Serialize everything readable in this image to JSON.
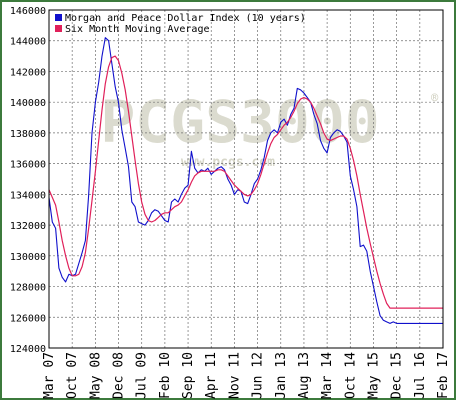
{
  "chart_data": {
    "type": "line",
    "title": "",
    "xlabel": "",
    "ylabel": "",
    "ylim": [
      124000,
      146000
    ],
    "y_ticks": [
      124000,
      126000,
      128000,
      130000,
      132000,
      134000,
      136000,
      138000,
      140000,
      142000,
      144000,
      146000
    ],
    "x_tick_labels": [
      "Mar 07",
      "Oct 07",
      "May 08",
      "Dec 08",
      "Jul 09",
      "Feb 10",
      "Sep 10",
      "Apr 11",
      "Nov 11",
      "Jun 12",
      "Jan 13",
      "Aug 13",
      "Mar 14",
      "Oct 14",
      "May 15",
      "Dec 15",
      "Jul 16",
      "Feb 17"
    ],
    "x_tick_positions": [
      0,
      7,
      14,
      21,
      28,
      35,
      42,
      49,
      56,
      63,
      70,
      77,
      84,
      91,
      98,
      105,
      112,
      119
    ],
    "x_range": [
      0,
      119
    ],
    "grid": true,
    "legend_position": "top-left",
    "watermark": "PCGS3000",
    "watermark_url": "www.pcgs.com",
    "series": [
      {
        "name": "Morgan and Peace Dollar Index (10 years)",
        "color": "#1010cc",
        "x": [
          0,
          1,
          2,
          3,
          4,
          5,
          6,
          7,
          8,
          9,
          10,
          11,
          12,
          13,
          14,
          15,
          16,
          17,
          18,
          19,
          20,
          21,
          22,
          23,
          24,
          25,
          26,
          27,
          28,
          29,
          30,
          31,
          32,
          33,
          34,
          35,
          36,
          37,
          38,
          39,
          40,
          41,
          42,
          43,
          44,
          45,
          46,
          47,
          48,
          49,
          50,
          51,
          52,
          53,
          54,
          55,
          56,
          57,
          58,
          59,
          60,
          61,
          62,
          63,
          64,
          65,
          66,
          67,
          68,
          69,
          70,
          71,
          72,
          73,
          74,
          75,
          76,
          77,
          78,
          79,
          80,
          81,
          82,
          83,
          84,
          85,
          86,
          87,
          88,
          89,
          90,
          91,
          92,
          93,
          94,
          95,
          96,
          97,
          98,
          99,
          100,
          101,
          102,
          103,
          104,
          105,
          106,
          107,
          108,
          109,
          110,
          111,
          112,
          113,
          114,
          115,
          116,
          117,
          118,
          119
        ],
        "values": [
          133800,
          132200,
          131800,
          129200,
          128600,
          128300,
          128800,
          128700,
          128800,
          129500,
          130200,
          131000,
          134000,
          138000,
          140000,
          141300,
          143000,
          144200,
          144000,
          142500,
          141000,
          140000,
          138200,
          137000,
          135800,
          133500,
          133200,
          132200,
          132100,
          132000,
          132300,
          132800,
          133000,
          132900,
          132600,
          132300,
          132200,
          133500,
          133700,
          133500,
          134000,
          134400,
          134600,
          136800,
          135700,
          135400,
          135600,
          135500,
          135700,
          135300,
          135500,
          135700,
          135800,
          135600,
          135000,
          134600,
          134000,
          134300,
          134200,
          133500,
          133400,
          134000,
          134700,
          135000,
          135600,
          136400,
          137500,
          138000,
          138200,
          138000,
          138700,
          138900,
          138500,
          139200,
          139600,
          140900,
          140800,
          140600,
          140300,
          140000,
          139200,
          138600,
          137500,
          137000,
          136700,
          137700,
          138000,
          138200,
          138100,
          137800,
          137400,
          135200,
          134300,
          133200,
          130600,
          130700,
          130300,
          129000,
          128000,
          127000,
          126100,
          125800,
          125700,
          125600,
          125700,
          125600,
          125600,
          125600,
          125600,
          125600,
          125600,
          125600,
          125600,
          125600,
          125600,
          125600,
          125600,
          125600,
          125600,
          125600
        ]
      },
      {
        "name": "Six Month Moving Average",
        "color": "#e0205a",
        "x": [
          0,
          1,
          2,
          3,
          4,
          5,
          6,
          7,
          8,
          9,
          10,
          11,
          12,
          13,
          14,
          15,
          16,
          17,
          18,
          19,
          20,
          21,
          22,
          23,
          24,
          25,
          26,
          27,
          28,
          29,
          30,
          31,
          32,
          33,
          34,
          35,
          36,
          37,
          38,
          39,
          40,
          41,
          42,
          43,
          44,
          45,
          46,
          47,
          48,
          49,
          50,
          51,
          52,
          53,
          54,
          55,
          56,
          57,
          58,
          59,
          60,
          61,
          62,
          63,
          64,
          65,
          66,
          67,
          68,
          69,
          70,
          71,
          72,
          73,
          74,
          75,
          76,
          77,
          78,
          79,
          80,
          81,
          82,
          83,
          84,
          85,
          86,
          87,
          88,
          89,
          90,
          91,
          92,
          93,
          94,
          95,
          96,
          97,
          98,
          99,
          100,
          101,
          102,
          103,
          104,
          105,
          106,
          107,
          108,
          109,
          110,
          111,
          112,
          113,
          114,
          115,
          116,
          117,
          118,
          119
        ],
        "values": [
          134300,
          133800,
          133300,
          132200,
          131000,
          130000,
          129200,
          128700,
          128700,
          128800,
          129300,
          130200,
          131800,
          133600,
          135500,
          137500,
          139500,
          141200,
          142300,
          142900,
          143000,
          142700,
          141900,
          140800,
          139400,
          137800,
          136200,
          134700,
          133500,
          132700,
          132300,
          132200,
          132300,
          132500,
          132700,
          132800,
          132800,
          133000,
          133200,
          133300,
          133500,
          133900,
          134300,
          134800,
          135200,
          135400,
          135500,
          135500,
          135500,
          135500,
          135500,
          135600,
          135600,
          135500,
          135200,
          134900,
          134600,
          134400,
          134200,
          134000,
          133900,
          134000,
          134300,
          134700,
          135300,
          136000,
          136700,
          137300,
          137700,
          137900,
          138200,
          138500,
          138700,
          139000,
          139400,
          139900,
          140200,
          140300,
          140200,
          140000,
          139600,
          139100,
          138600,
          138000,
          137600,
          137500,
          137600,
          137700,
          137800,
          137800,
          137600,
          137000,
          136200,
          135200,
          134000,
          132900,
          131800,
          130800,
          129900,
          129000,
          128200,
          127500,
          126900,
          126600,
          126600,
          126600,
          126600,
          126600,
          126600,
          126600,
          126600,
          126600,
          126600,
          126600,
          126600,
          126600,
          126600,
          126600,
          126600,
          126600
        ]
      }
    ]
  }
}
